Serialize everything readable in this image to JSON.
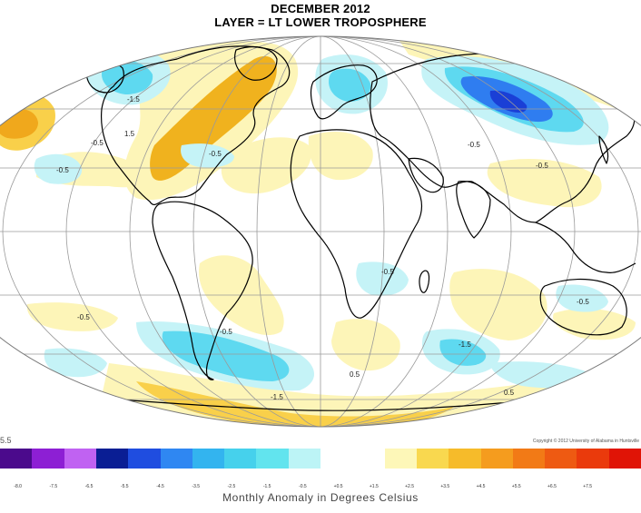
{
  "title": {
    "line1": "DECEMBER 2012",
    "line2": "LAYER = LT LOWER TROPOSPHERE"
  },
  "map": {
    "projection": "mollweide",
    "colors": {
      "ocean_bg": "#ffffff",
      "outline": "#000000",
      "graticule": "#9a9a9a",
      "warm_light": "#fdf5b8",
      "warm_mid": "#f9d04a",
      "warm_strong": "#f0a81c",
      "cool_light": "#c5f3f7",
      "cool_mid": "#5ed9f0",
      "cool_strong": "#2f7df0",
      "cool_deep": "#1a3fd6"
    },
    "contour_labels": [
      "-0.5",
      "-0.5",
      "-0.5",
      "-0.5",
      "-0.5",
      "-0.5",
      "-0.5",
      "-0.5",
      "-0.5",
      "-0.5",
      "-1.5",
      "-1.5",
      "-1.5",
      "1.5",
      "1.5",
      "0.5",
      "0.5",
      "-0.5"
    ]
  },
  "colorbar": {
    "left_value": "5.5",
    "colors": [
      "#4b0a8c",
      "#8d1fd4",
      "#c062f2",
      "#0a1e94",
      "#1f4de0",
      "#2f87f2",
      "#33b4ef",
      "#46d1ec",
      "#62e4ee",
      "#bcf4f6",
      "#ffffff",
      "#ffffff",
      "#fdf7b8",
      "#f9d84f",
      "#f6bb2a",
      "#f59c1e",
      "#f27a16",
      "#ee5a12",
      "#ea3a0c",
      "#e01406"
    ],
    "ticks": [
      "-8.0",
      "-7.5",
      "-6.5",
      "-5.5",
      "-4.5",
      "-3.5",
      "-2.5",
      "-1.5",
      "-0.5",
      "+0.5",
      "+1.5",
      "+2.5",
      "+3.5",
      "+4.5",
      "+5.5",
      "+6.5",
      "+7.5"
    ],
    "caption": "Monthly Anomaly in Degrees Celsius",
    "copyright": "Copyright © 2012 University of Alabama in Huntsville"
  }
}
